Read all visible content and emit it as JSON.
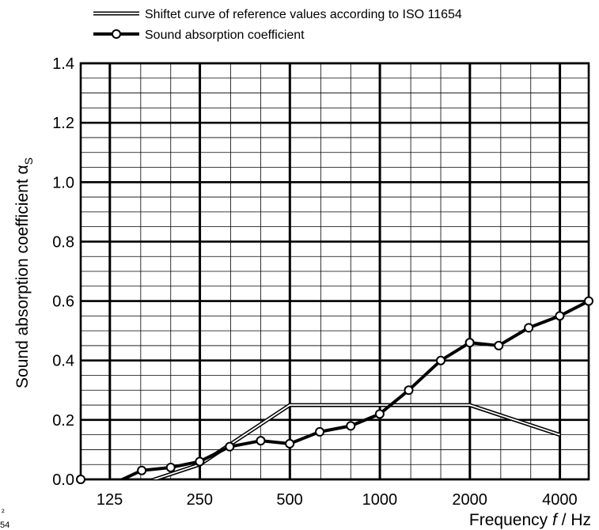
{
  "chart_data": {
    "type": "line",
    "title": "",
    "xlabel": "Frequency f / Hz",
    "xlabel_parts": {
      "pre": "Frequency ",
      "var": "f",
      "post": " / Hz"
    },
    "ylabel": "Sound absorption coefficient αS",
    "ylabel_parts": {
      "main": "Sound absorption coefficient α",
      "sub": "S"
    },
    "x_scale": "log",
    "x_tick_labels": [
      "125",
      "250",
      "500",
      "1000",
      "2000",
      "4000"
    ],
    "x_ticks": [
      125,
      250,
      500,
      1000,
      2000,
      4000
    ],
    "xlim": [
      100,
      5000
    ],
    "ylim": [
      0,
      1.4
    ],
    "y_tick_labels": [
      "0.0",
      "0.2",
      "0.4",
      "0.6",
      "0.8",
      "1.0",
      "1.2",
      "1.4"
    ],
    "y_ticks": [
      0,
      0.2,
      0.4,
      0.6,
      0.8,
      1.0,
      1.2,
      1.4
    ],
    "grid": true,
    "legend_position": "top",
    "series": [
      {
        "name": "Shiftet curve of reference values according to ISO 11654",
        "style": "double-line",
        "x": [
          125,
          250,
          500,
          2000,
          4000
        ],
        "y": [
          -0.05,
          0.05,
          0.25,
          0.25,
          0.15
        ]
      },
      {
        "name": "Sound absorption coefficient",
        "style": "thick-line-circle-markers",
        "x": [
          100,
          125,
          160,
          200,
          250,
          315,
          400,
          500,
          630,
          800,
          1000,
          1250,
          1600,
          2000,
          2500,
          3150,
          4000,
          5000
        ],
        "y": [
          0.0,
          -0.02,
          0.03,
          0.04,
          0.06,
          0.11,
          0.13,
          0.12,
          0.16,
          0.18,
          0.22,
          0.3,
          0.4,
          0.46,
          0.45,
          0.51,
          0.55,
          0.6
        ]
      }
    ],
    "stray_marks": [
      "²",
      "54"
    ]
  }
}
